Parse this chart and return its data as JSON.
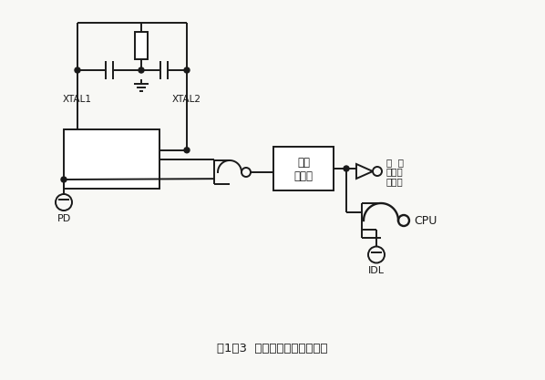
{
  "title": "图1－3  待机和掉电的硬件结构",
  "bg_color": "#f8f8f5",
  "line_color": "#1a1a1a",
  "labels": {
    "xtal1": "XTAL1",
    "xtal2": "XTAL2",
    "pd": "PD",
    "idl": "IDL",
    "clock_line1": "时钟",
    "clock_line2": "发生器",
    "out1_line1": "中  断",
    "out1_line2": "串行口",
    "out1_line3": "定时器",
    "out2": "CPU"
  },
  "lw": 1.4
}
